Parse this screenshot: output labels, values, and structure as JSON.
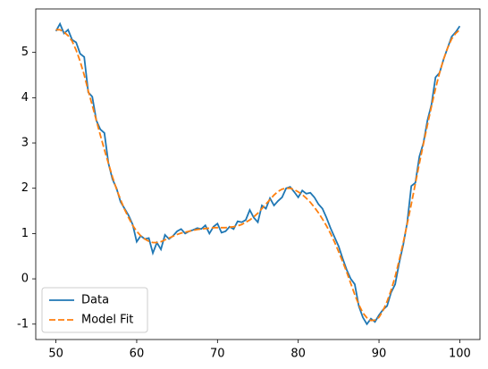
{
  "chart_data": {
    "type": "line",
    "x": [
      50,
      50.5,
      51,
      51.5,
      52,
      52.5,
      53,
      53.5,
      54,
      54.5,
      55,
      55.5,
      56,
      56.5,
      57,
      57.5,
      58,
      58.5,
      59,
      59.5,
      60,
      60.5,
      61,
      61.5,
      62,
      62.5,
      63,
      63.5,
      64,
      64.5,
      65,
      65.5,
      66,
      66.5,
      67,
      67.5,
      68,
      68.5,
      69,
      69.5,
      70,
      70.5,
      71,
      71.5,
      72,
      72.5,
      73,
      73.5,
      74,
      74.5,
      75,
      75.5,
      76,
      76.5,
      77,
      77.5,
      78,
      78.5,
      79,
      79.5,
      80,
      80.5,
      81,
      81.5,
      82,
      82.5,
      83,
      83.5,
      84,
      84.5,
      85,
      85.5,
      86,
      86.5,
      87,
      87.5,
      88,
      88.5,
      89,
      89.5,
      90,
      90.5,
      91,
      91.5,
      92,
      92.5,
      93,
      93.5,
      94,
      94.5,
      95,
      95.5,
      96,
      96.5,
      97,
      97.5,
      98,
      98.5,
      99,
      99.5,
      100
    ],
    "series": [
      {
        "name": "Data",
        "color": "#1f77b4",
        "dashed": false,
        "values": [
          5.47,
          5.63,
          5.42,
          5.5,
          5.28,
          5.22,
          4.97,
          4.9,
          4.12,
          4.02,
          3.5,
          3.3,
          3.22,
          2.55,
          2.2,
          2.0,
          1.7,
          1.55,
          1.4,
          1.2,
          0.82,
          0.95,
          0.88,
          0.9,
          0.57,
          0.8,
          0.65,
          0.97,
          0.88,
          0.95,
          1.05,
          1.1,
          1.0,
          1.05,
          1.08,
          1.12,
          1.1,
          1.18,
          1.0,
          1.15,
          1.22,
          1.02,
          1.05,
          1.15,
          1.1,
          1.27,
          1.25,
          1.3,
          1.52,
          1.35,
          1.25,
          1.62,
          1.55,
          1.78,
          1.62,
          1.72,
          1.8,
          2.0,
          2.03,
          1.92,
          1.8,
          1.95,
          1.88,
          1.9,
          1.8,
          1.65,
          1.55,
          1.35,
          1.12,
          0.92,
          0.72,
          0.45,
          0.2,
          0.0,
          -0.12,
          -0.6,
          -0.85,
          -1.0,
          -0.88,
          -0.95,
          -0.8,
          -0.68,
          -0.6,
          -0.3,
          -0.12,
          0.35,
          0.75,
          1.25,
          2.05,
          2.12,
          2.7,
          3.0,
          3.5,
          3.85,
          4.45,
          4.55,
          4.85,
          5.1,
          5.35,
          5.45,
          5.58
        ]
      },
      {
        "name": "Model Fit",
        "color": "#ff7f0e",
        "dashed": true,
        "values": [
          5.5,
          5.5,
          5.45,
          5.37,
          5.25,
          5.05,
          4.8,
          4.5,
          4.15,
          3.83,
          3.5,
          3.17,
          2.85,
          2.55,
          2.25,
          1.98,
          1.75,
          1.53,
          1.35,
          1.18,
          1.05,
          0.95,
          0.88,
          0.83,
          0.8,
          0.8,
          0.82,
          0.86,
          0.9,
          0.94,
          0.98,
          1.01,
          1.03,
          1.05,
          1.07,
          1.09,
          1.1,
          1.11,
          1.12,
          1.13,
          1.13,
          1.13,
          1.13,
          1.14,
          1.15,
          1.17,
          1.2,
          1.25,
          1.3,
          1.37,
          1.45,
          1.55,
          1.65,
          1.75,
          1.85,
          1.93,
          1.98,
          2.0,
          2.0,
          1.97,
          1.92,
          1.86,
          1.78,
          1.69,
          1.58,
          1.46,
          1.32,
          1.17,
          1.0,
          0.81,
          0.6,
          0.38,
          0.15,
          -0.1,
          -0.35,
          -0.57,
          -0.75,
          -0.86,
          -0.92,
          -0.91,
          -0.85,
          -0.7,
          -0.5,
          -0.25,
          0.05,
          0.41,
          0.8,
          1.22,
          1.65,
          2.1,
          2.55,
          2.98,
          3.4,
          3.81,
          4.2,
          4.55,
          4.85,
          5.1,
          5.3,
          5.42,
          5.5
        ]
      }
    ],
    "xlim": [
      47.5,
      102.5
    ],
    "xticks": [
      50,
      60,
      70,
      80,
      90,
      100
    ],
    "ylim": [
      -1.34,
      5.96
    ],
    "yticks": [
      -1,
      0,
      1,
      2,
      3,
      4,
      5
    ],
    "legend": "lower left"
  }
}
